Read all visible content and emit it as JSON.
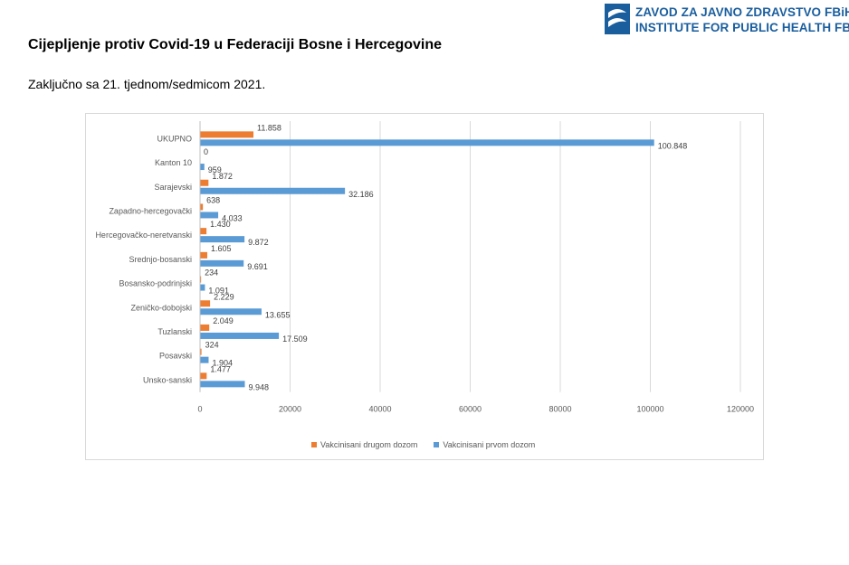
{
  "header": {
    "logo_line1": "ZAVOD ZA JAVNO ZDRAVSTVO FBiH",
    "logo_line2": "INSTITUTE FOR PUBLIC HEALTH FB&H",
    "logo_color": "#1a5e9e"
  },
  "page": {
    "title": "Cijepljenje protiv Covid-19 u Federaciji Bosne i Hercegovine",
    "subtitle": "Zaključno sa 21. tjednom/sedmicom 2021."
  },
  "chart_data": {
    "type": "bar",
    "orientation": "horizontal",
    "categories": [
      "UKUPNO",
      "Kanton 10",
      "Sarajevski",
      "Zapadno-hercegovački",
      "Hercegovačko-neretvanski",
      "Srednjo-bosanski",
      "Bosansko-podrinjski",
      "Zeničko-dobojski",
      "Tuzlanski",
      "Posavski",
      "Unsko-sanski"
    ],
    "series": [
      {
        "name": "Vakcinisani drugom dozom",
        "color": "#ed7d31",
        "values": [
          11858,
          0,
          1872,
          638,
          1430,
          1605,
          234,
          2229,
          2049,
          324,
          1477
        ],
        "labels": [
          "11.858",
          "0",
          "1.872",
          "638",
          "1.430",
          "1.605",
          "234",
          "2.229",
          "2.049",
          "324",
          "1.477"
        ]
      },
      {
        "name": "Vakcinisani prvom dozom",
        "color": "#5b9bd5",
        "values": [
          100848,
          959,
          32186,
          4033,
          9872,
          9691,
          1091,
          13655,
          17509,
          1904,
          9948
        ],
        "labels": [
          "100.848",
          "959",
          "32.186",
          "4.033",
          "9.872",
          "9.691",
          "1.091",
          "13.655",
          "17.509",
          "1.904",
          "9.948"
        ]
      }
    ],
    "xlim": [
      0,
      120000
    ],
    "xticks": [
      "0",
      "20000",
      "40000",
      "60000",
      "80000",
      "100000",
      "120000"
    ],
    "grid": true,
    "legend": "bottom"
  }
}
